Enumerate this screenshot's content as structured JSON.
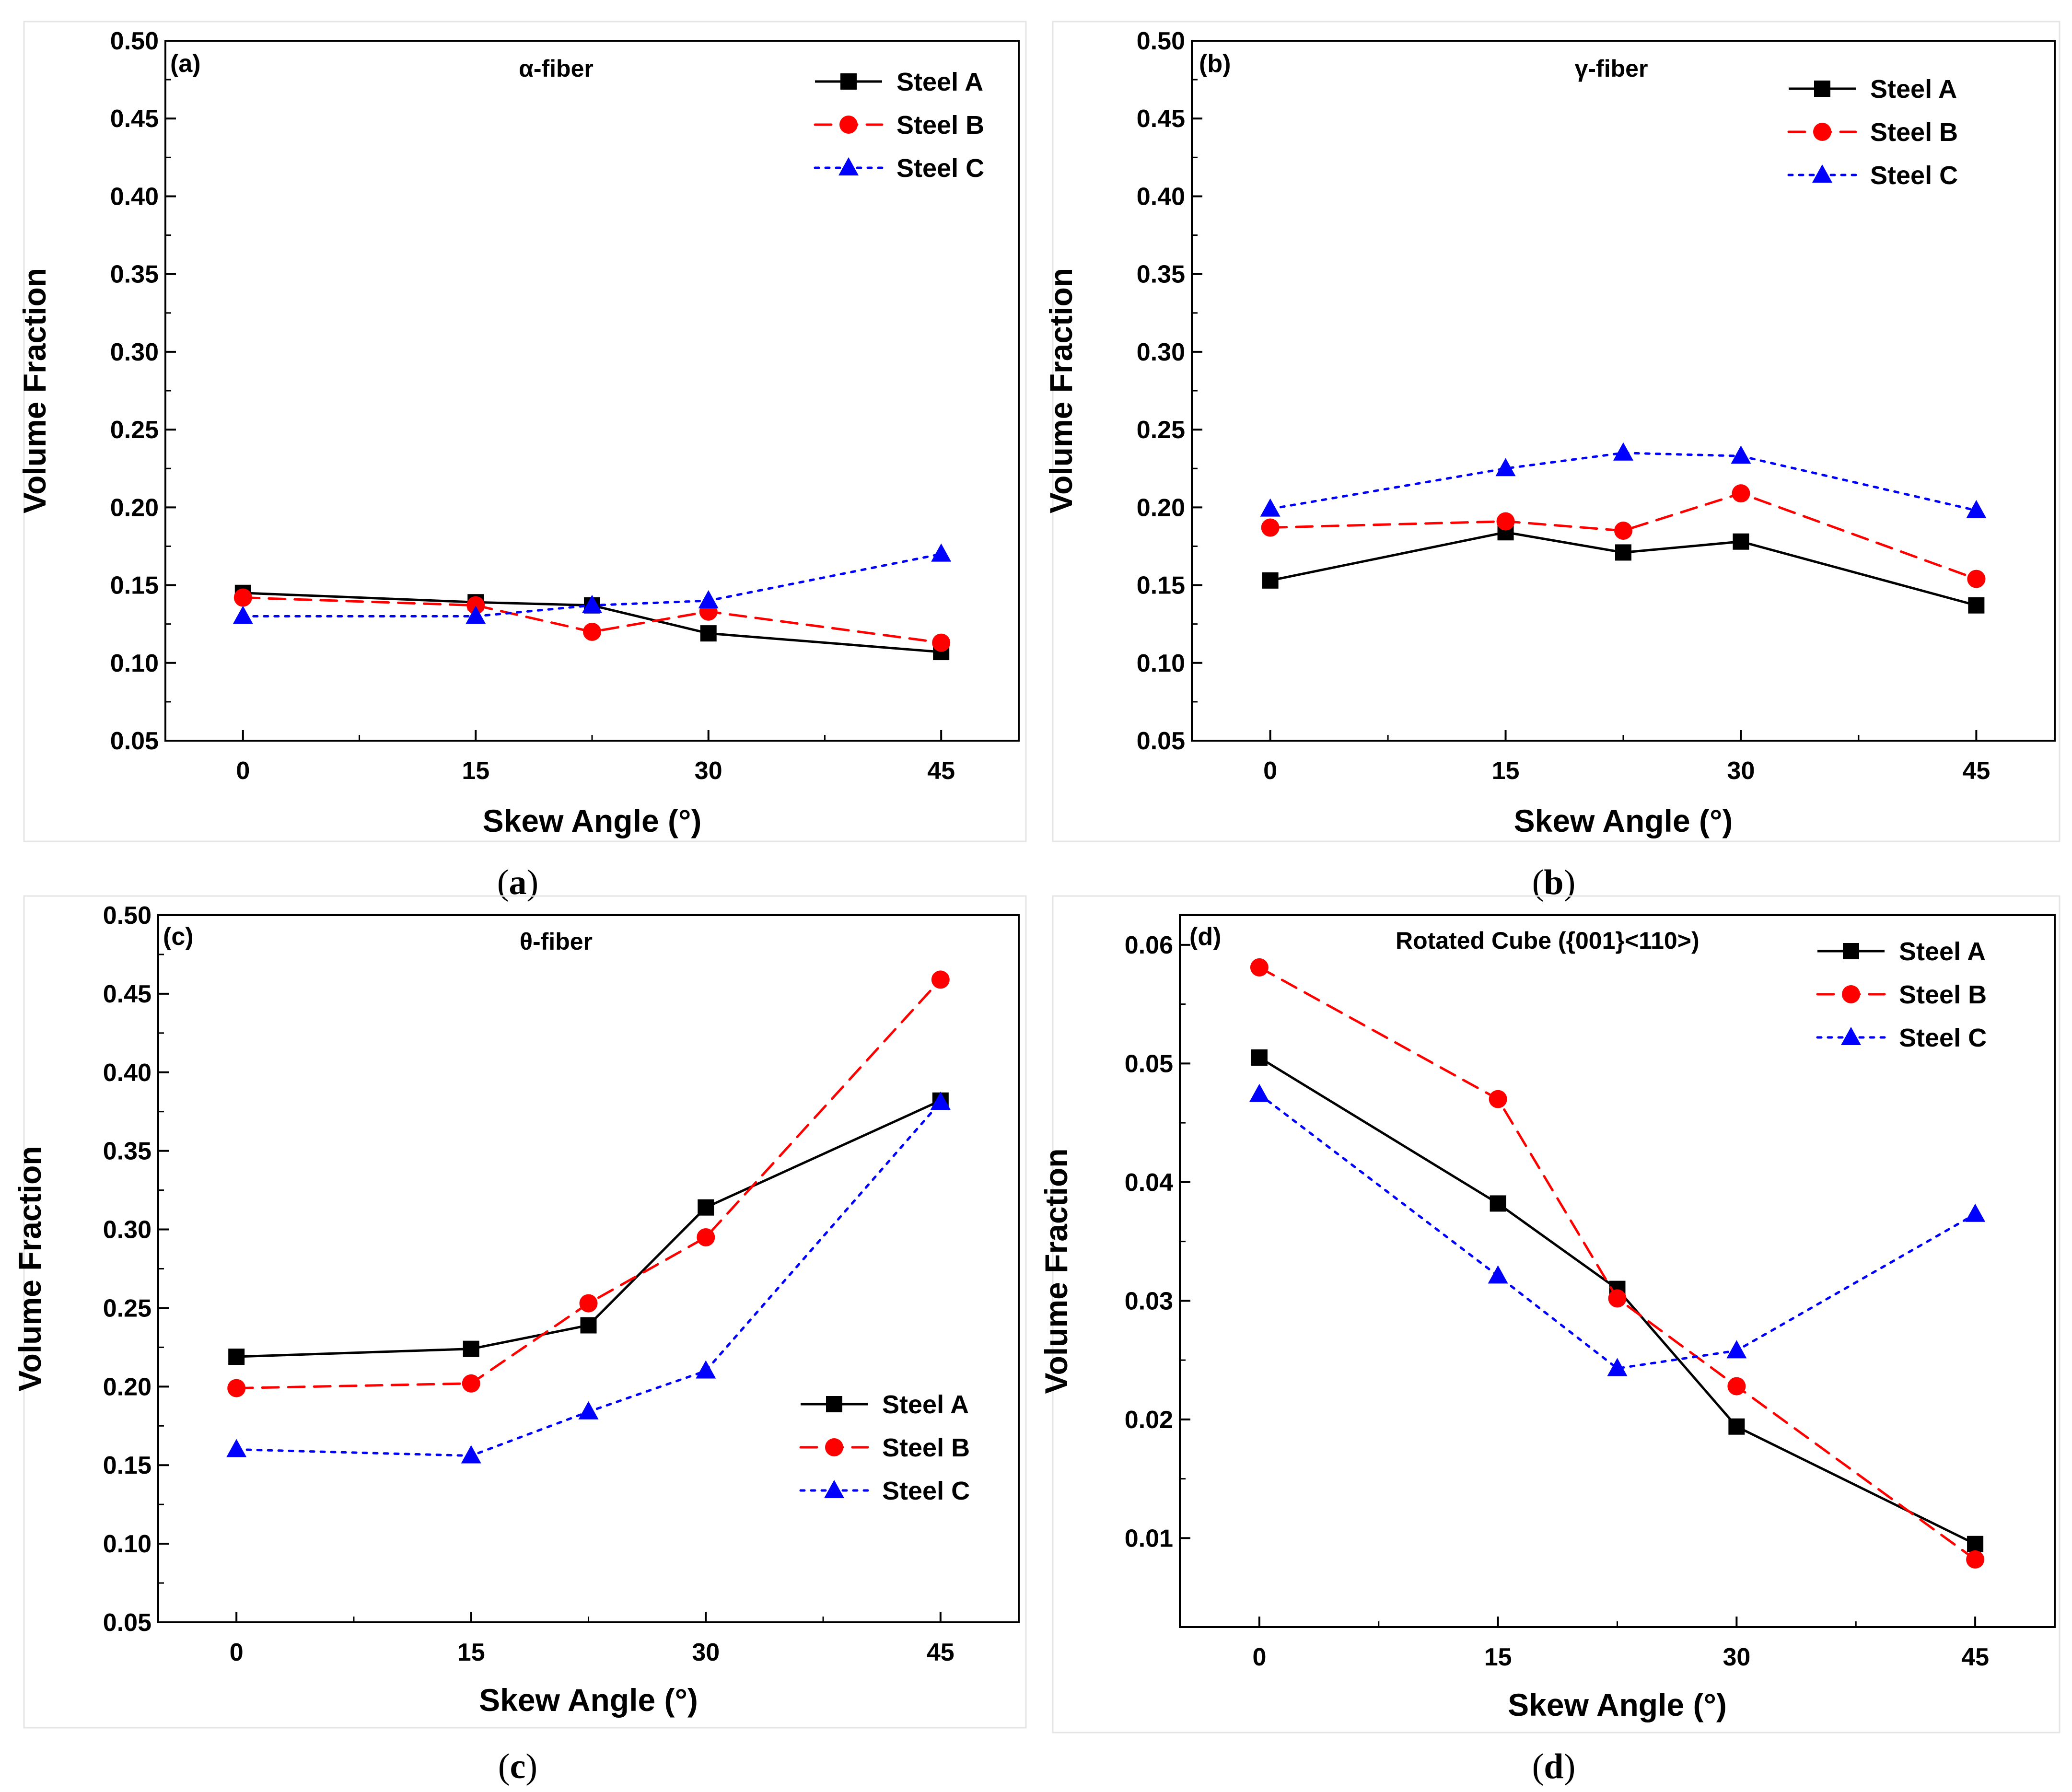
{
  "chart_data": [
    {
      "type": "line",
      "panel_tag": "(a)",
      "caption_letter": "a",
      "annotation": "α-fiber",
      "xlabel": "Skew Angle (°)",
      "ylabel": "Volume Fraction",
      "xlim": [
        -5,
        50
      ],
      "ylim": [
        0.05,
        0.5
      ],
      "xticks": [
        0,
        15,
        30,
        45
      ],
      "yticks": [
        0.05,
        0.1,
        0.15,
        0.2,
        0.25,
        0.3,
        0.35,
        0.4,
        0.45,
        0.5
      ],
      "ytick_labels": [
        "0.05",
        "0.10",
        "0.15",
        "0.20",
        "0.25",
        "0.30",
        "0.35",
        "0.40",
        "0.45",
        "0.50"
      ],
      "legend_position": "top-right",
      "grid": false,
      "x": [
        0,
        15,
        22.5,
        30,
        45
      ],
      "series": [
        {
          "name": "Steel A",
          "values": [
            0.145,
            0.139,
            0.137,
            0.119,
            0.107
          ]
        },
        {
          "name": "Steel B",
          "values": [
            0.142,
            0.137,
            0.12,
            0.133,
            0.113
          ]
        },
        {
          "name": "Steel C",
          "values": [
            0.13,
            0.13,
            0.137,
            0.14,
            0.17
          ]
        }
      ]
    },
    {
      "type": "line",
      "panel_tag": "(b)",
      "caption_letter": "b",
      "annotation": "γ-fiber",
      "xlabel": "Skew Angle (°)",
      "ylabel": "Volume Fraction",
      "xlim": [
        -5,
        50
      ],
      "ylim": [
        0.05,
        0.5
      ],
      "xticks": [
        0,
        15,
        30,
        45
      ],
      "yticks": [
        0.05,
        0.1,
        0.15,
        0.2,
        0.25,
        0.3,
        0.35,
        0.4,
        0.45,
        0.5
      ],
      "ytick_labels": [
        "0.05",
        "0.10",
        "0.15",
        "0.20",
        "0.25",
        "0.30",
        "0.35",
        "0.40",
        "0.45",
        "0.50"
      ],
      "legend_position": "top-right",
      "grid": false,
      "x": [
        0,
        15,
        22.5,
        30,
        45
      ],
      "series": [
        {
          "name": "Steel A",
          "values": [
            0.153,
            0.184,
            0.171,
            0.178,
            0.137
          ]
        },
        {
          "name": "Steel B",
          "values": [
            0.187,
            0.191,
            0.185,
            0.209,
            0.154
          ]
        },
        {
          "name": "Steel C",
          "values": [
            0.199,
            0.225,
            0.235,
            0.233,
            0.198
          ]
        }
      ]
    },
    {
      "type": "line",
      "panel_tag": "(c)",
      "caption_letter": "c",
      "annotation": "θ-fiber",
      "xlabel": "Skew Angle (°)",
      "ylabel": "Volume Fraction",
      "xlim": [
        -5,
        50
      ],
      "ylim": [
        0.05,
        0.5
      ],
      "xticks": [
        0,
        15,
        30,
        45
      ],
      "yticks": [
        0.05,
        0.1,
        0.15,
        0.2,
        0.25,
        0.3,
        0.35,
        0.4,
        0.45,
        0.5
      ],
      "ytick_labels": [
        "0.05",
        "0.10",
        "0.15",
        "0.20",
        "0.25",
        "0.30",
        "0.35",
        "0.40",
        "0.45",
        "0.50"
      ],
      "legend_position": "bottom-right",
      "grid": false,
      "x": [
        0,
        15,
        22.5,
        30,
        45
      ],
      "series": [
        {
          "name": "Steel A",
          "values": [
            0.219,
            0.224,
            0.239,
            0.314,
            0.382
          ]
        },
        {
          "name": "Steel B",
          "values": [
            0.199,
            0.202,
            0.253,
            0.295,
            0.459
          ]
        },
        {
          "name": "Steel C",
          "values": [
            0.16,
            0.156,
            0.184,
            0.21,
            0.381
          ]
        }
      ]
    },
    {
      "type": "line",
      "panel_tag": "(d)",
      "caption_letter": "d",
      "annotation": "Rotated Cube ({001}<110>)",
      "xlabel": "Skew Angle (°)",
      "ylabel": "Volume Fraction",
      "xlim": [
        -5,
        50
      ],
      "ylim": [
        0.0025,
        0.0625
      ],
      "xticks": [
        0,
        15,
        30,
        45
      ],
      "yticks": [
        0.01,
        0.02,
        0.03,
        0.04,
        0.05,
        0.06
      ],
      "ytick_labels": [
        "0.01",
        "0.02",
        "0.03",
        "0.04",
        "0.05",
        "0.06"
      ],
      "legend_position": "top-right",
      "grid": false,
      "x": [
        0,
        15,
        22.5,
        30,
        45
      ],
      "series": [
        {
          "name": "Steel A",
          "values": [
            0.0505,
            0.0382,
            0.031,
            0.0194,
            0.0095
          ]
        },
        {
          "name": "Steel B",
          "values": [
            0.0581,
            0.047,
            0.0302,
            0.0228,
            0.0082
          ]
        },
        {
          "name": "Steel C",
          "values": [
            0.0474,
            0.0321,
            0.0243,
            0.0258,
            0.0373
          ]
        }
      ]
    }
  ],
  "colors": {
    "Steel A": "#000000",
    "Steel B": "#ff0000",
    "Steel C": "#0000ff",
    "frame_shadow": "#e5e5e5"
  },
  "markers": {
    "Steel A": "square",
    "Steel B": "circle",
    "Steel C": "triangle"
  },
  "line_styles": {
    "Steel A": "solid",
    "Steel B": "dashed",
    "Steel C": "dotted"
  }
}
